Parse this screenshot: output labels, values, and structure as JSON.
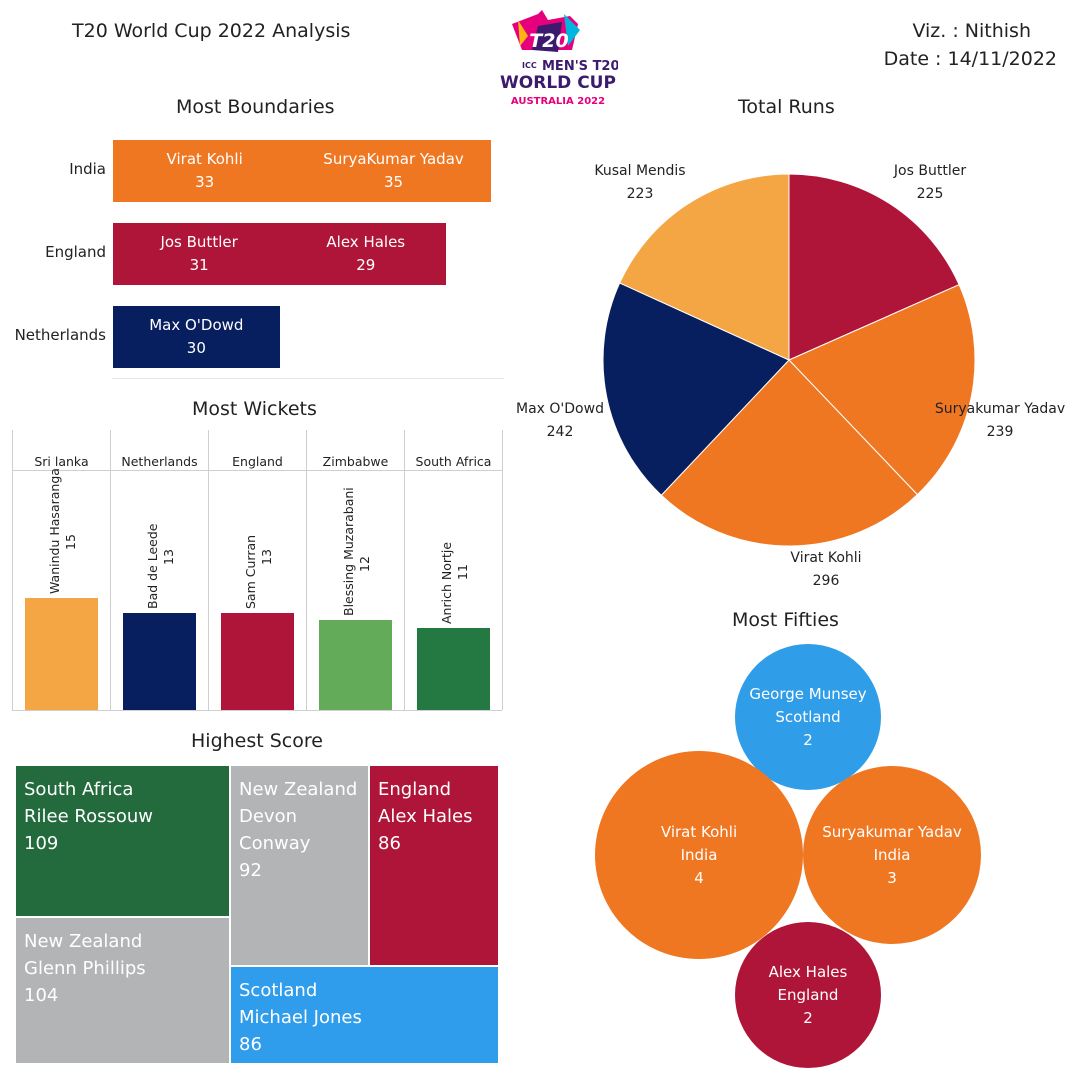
{
  "header": {
    "title": "T20 World Cup 2022 Analysis",
    "viz": "Viz. : Nithish",
    "date": "Date : 14/11/2022",
    "logo": {
      "line1": "ICC",
      "line2": "MEN'S T20",
      "line3": "WORLD CUP",
      "line4": "AUSTRALIA 2022",
      "mark": "T20"
    }
  },
  "colors": {
    "india": "#F07722",
    "england": "#AF1538",
    "netherlands": "#071E5F",
    "srilanka": "#F4A644",
    "zimbabwe": "#64AB59",
    "southafrica": "#247841",
    "southafrica_treemap": "#236A3D",
    "newzealand": "#B2B4B5",
    "scotland": "#2F9DEB",
    "scotland_bubble": "#2F9DE8"
  },
  "chart_data": [
    {
      "type": "bar",
      "title": "Most Boundaries",
      "orientation": "horizontal-stacked",
      "xlim": [
        0,
        72
      ],
      "categories": [
        "India",
        "England",
        "Netherlands"
      ],
      "rows": [
        {
          "country": "India",
          "segments": [
            {
              "player": "Virat Kohli",
              "value": 33
            },
            {
              "player": "SuryaKumar Yadav",
              "value": 35
            }
          ]
        },
        {
          "country": "England",
          "segments": [
            {
              "player": "Jos Buttler",
              "value": 31
            },
            {
              "player": "Alex Hales",
              "value": 29
            }
          ]
        },
        {
          "country": "Netherlands",
          "segments": [
            {
              "player": "Max O'Dowd",
              "value": 30
            }
          ]
        }
      ]
    },
    {
      "type": "bar",
      "title": "Most Wickets",
      "ylim": [
        0,
        32
      ],
      "categories": [
        "Sri lanka",
        "Netherlands",
        "England",
        "Zimbabwe",
        "South Africa"
      ],
      "players": [
        "Wanindu Hasaranga",
        "Bad de Leede",
        "Sam Curran",
        "Blessing Muzarabani",
        "Anrich Nortje"
      ],
      "values": [
        15,
        13,
        13,
        12,
        11
      ],
      "colors": [
        "#F4A644",
        "#071E5F",
        "#AF1538",
        "#64AB59",
        "#247841"
      ]
    },
    {
      "type": "pie",
      "title": "Total Runs",
      "slices": [
        {
          "label": "Jos Buttler",
          "value": 225,
          "color": "#AF1538"
        },
        {
          "label": "Suryakumar Yadav",
          "value": 239,
          "color": "#F07722"
        },
        {
          "label": "Virat Kohli",
          "value": 296,
          "color": "#F07722"
        },
        {
          "label": "Max O'Dowd",
          "value": 242,
          "color": "#071E5F"
        },
        {
          "label": "Kusal Mendis",
          "value": 223,
          "color": "#F4A644"
        }
      ]
    },
    {
      "type": "treemap",
      "title": "Highest Score",
      "items": [
        {
          "country": "South Africa",
          "player": "Rilee Rossouw",
          "value": 109,
          "color": "#236A3D"
        },
        {
          "country": "New Zealand",
          "player": "Glenn Phillips",
          "value": 104,
          "color": "#B2B4B5"
        },
        {
          "country": "New Zealand",
          "player": "Devon Conway",
          "value": 92,
          "color": "#B2B4B5"
        },
        {
          "country": "England",
          "player": "Alex Hales",
          "value": 86,
          "color": "#AF1538"
        },
        {
          "country": "Scotland",
          "player": "Michael Jones",
          "value": 86,
          "color": "#2F9DEB"
        }
      ]
    },
    {
      "type": "bubble",
      "title": "Most Fifties",
      "items": [
        {
          "player": "George Munsey",
          "country": "Scotland",
          "value": 2,
          "color": "#2F9DE8"
        },
        {
          "player": "Virat Kohli",
          "country": "India",
          "value": 4,
          "color": "#F07722"
        },
        {
          "player": "Suryakumar Yadav",
          "country": "India",
          "value": 3,
          "color": "#F07722"
        },
        {
          "player": "Alex Hales",
          "country": "England",
          "value": 2,
          "color": "#AF1538"
        }
      ]
    }
  ]
}
